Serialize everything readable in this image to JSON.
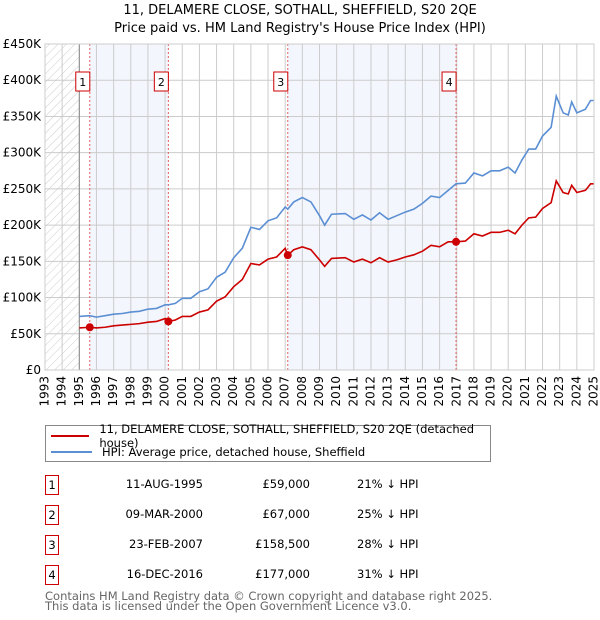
{
  "title": "11, DELAMERE CLOSE, SOTHALL, SHEFFIELD, S20 2QE",
  "subtitle": "Price paid vs. HM Land Registry's House Price Index (HPI)",
  "chart_data": {
    "type": "line",
    "title": "11, DELAMERE CLOSE, SOTHALL, SHEFFIELD, S20 2QE — Price paid vs. HM Land Registry's House Price Index (HPI)",
    "xlim": [
      1993,
      2025
    ],
    "ylim": [
      0,
      450000
    ],
    "x_ticks": [
      "1993",
      "1994",
      "1995",
      "1996",
      "1997",
      "1998",
      "1999",
      "2000",
      "2001",
      "2002",
      "2003",
      "2004",
      "2005",
      "2006",
      "2007",
      "2008",
      "2009",
      "2010",
      "2011",
      "2012",
      "2013",
      "2014",
      "2015",
      "2016",
      "2017",
      "2018",
      "2019",
      "2020",
      "2021",
      "2022",
      "2023",
      "2024",
      "2025"
    ],
    "y_ticks": [
      {
        "v": 0,
        "label": "£0"
      },
      {
        "v": 50000,
        "label": "£50K"
      },
      {
        "v": 100000,
        "label": "£100K"
      },
      {
        "v": 150000,
        "label": "£150K"
      },
      {
        "v": 200000,
        "label": "£200K"
      },
      {
        "v": 250000,
        "label": "£250K"
      },
      {
        "v": 300000,
        "label": "£300K"
      },
      {
        "v": 350000,
        "label": "£350K"
      },
      {
        "v": 400000,
        "label": "£400K"
      },
      {
        "v": 450000,
        "label": "£450K"
      }
    ],
    "grid": true,
    "legend_placement": "below",
    "hatched_range": [
      1993,
      1995
    ],
    "shaded_ranges": [
      [
        1995.61,
        2000.19
      ],
      [
        2007.15,
        2016.96
      ]
    ],
    "series": [
      {
        "name": "11, DELAMERE CLOSE, SOTHALL, SHEFFIELD, S20 2QE (detached house)",
        "color": "#cc0000",
        "x": [
          1995.0,
          1995.6,
          1996.0,
          1996.5,
          1997.0,
          1997.5,
          1998.0,
          1998.5,
          1999.0,
          1999.5,
          2000.0,
          2000.2,
          2000.6,
          2001.0,
          2001.5,
          2002.0,
          2002.5,
          2003.0,
          2003.5,
          2004.0,
          2004.5,
          2005.0,
          2005.5,
          2006.0,
          2006.5,
          2007.0,
          2007.15,
          2007.5,
          2008.0,
          2008.5,
          2009.0,
          2009.3,
          2009.7,
          2010.5,
          2011.0,
          2011.5,
          2012.0,
          2012.5,
          2013.0,
          2013.5,
          2014.0,
          2014.5,
          2015.0,
          2015.5,
          2016.0,
          2016.5,
          2016.96,
          2017.5,
          2018.0,
          2018.5,
          2019.0,
          2019.5,
          2020.0,
          2020.4,
          2020.8,
          2021.2,
          2021.6,
          2022.0,
          2022.5,
          2022.8,
          2023.2,
          2023.5,
          2023.7,
          2024.0,
          2024.5,
          2024.8,
          2025.0
        ],
        "y": [
          58,
          59,
          58,
          59,
          61,
          62,
          63,
          64,
          66,
          67,
          71,
          67,
          69,
          74,
          74,
          80,
          83,
          95,
          101,
          115,
          125,
          147,
          145,
          153,
          156,
          168,
          158.5,
          166,
          170,
          166,
          152,
          143,
          154,
          155,
          149,
          153,
          148,
          155,
          149,
          152,
          156,
          159,
          164,
          172,
          170,
          177,
          177,
          178,
          188,
          185,
          190,
          190,
          193,
          188,
          200,
          210,
          211,
          223,
          231,
          261,
          245,
          243,
          255,
          245,
          248,
          257,
          257
        ],
        "y_unit": "thousand GBP"
      },
      {
        "name": "HPI: Average price, detached house, Sheffield",
        "color": "#5b8fd4",
        "x": [
          1995.0,
          1995.6,
          1996.0,
          1996.5,
          1997.0,
          1997.5,
          1998.0,
          1998.5,
          1999.0,
          1999.5,
          2000.0,
          2000.2,
          2000.6,
          2001.0,
          2001.5,
          2002.0,
          2002.5,
          2003.0,
          2003.5,
          2004.0,
          2004.5,
          2005.0,
          2005.5,
          2006.0,
          2006.5,
          2007.0,
          2007.15,
          2007.5,
          2008.0,
          2008.5,
          2009.0,
          2009.3,
          2009.7,
          2010.5,
          2011.0,
          2011.5,
          2012.0,
          2012.5,
          2013.0,
          2013.5,
          2014.0,
          2014.5,
          2015.0,
          2015.5,
          2016.0,
          2016.5,
          2016.96,
          2017.5,
          2018.0,
          2018.5,
          2019.0,
          2019.5,
          2020.0,
          2020.4,
          2020.8,
          2021.2,
          2021.6,
          2022.0,
          2022.5,
          2022.8,
          2023.2,
          2023.5,
          2023.7,
          2024.0,
          2024.5,
          2024.8,
          2025.0
        ],
        "y": [
          74,
          75,
          73,
          75,
          77,
          78,
          80,
          81,
          84,
          85,
          90,
          90,
          92,
          99,
          99,
          108,
          112,
          128,
          135,
          155,
          168,
          197,
          194,
          206,
          210,
          225,
          222,
          232,
          238,
          232,
          213,
          200,
          215,
          216,
          208,
          214,
          207,
          217,
          208,
          213,
          218,
          222,
          230,
          240,
          238,
          248,
          257,
          258,
          272,
          268,
          275,
          275,
          280,
          272,
          290,
          305,
          305,
          323,
          335,
          378,
          355,
          352,
          370,
          355,
          360,
          372,
          372
        ],
        "y_unit": "thousand GBP"
      }
    ],
    "sales": [
      {
        "n": "1",
        "x": 1995.61,
        "price": 59000
      },
      {
        "n": "2",
        "x": 2000.19,
        "price": 67000
      },
      {
        "n": "3",
        "x": 2007.15,
        "price": 158500
      },
      {
        "n": "4",
        "x": 2016.96,
        "price": 177000
      }
    ]
  },
  "legend": [
    {
      "label": "11, DELAMERE CLOSE, SOTHALL, SHEFFIELD, S20 2QE (detached house)",
      "color": "#cc0000"
    },
    {
      "label": "HPI: Average price, detached house, Sheffield",
      "color": "#5b8fd4"
    }
  ],
  "table": [
    {
      "n": "1",
      "date": "11-AUG-1995",
      "price": "£59,000",
      "hpi": "21% ↓ HPI"
    },
    {
      "n": "2",
      "date": "09-MAR-2000",
      "price": "£67,000",
      "hpi": "25% ↓ HPI"
    },
    {
      "n": "3",
      "date": "23-FEB-2007",
      "price": "£158,500",
      "hpi": "28% ↓ HPI"
    },
    {
      "n": "4",
      "date": "16-DEC-2016",
      "price": "£177,000",
      "hpi": "31% ↓ HPI"
    }
  ],
  "footer": [
    "Contains HM Land Registry data © Crown copyright and database right 2025.",
    "This data is licensed under the Open Government Licence v3.0."
  ]
}
